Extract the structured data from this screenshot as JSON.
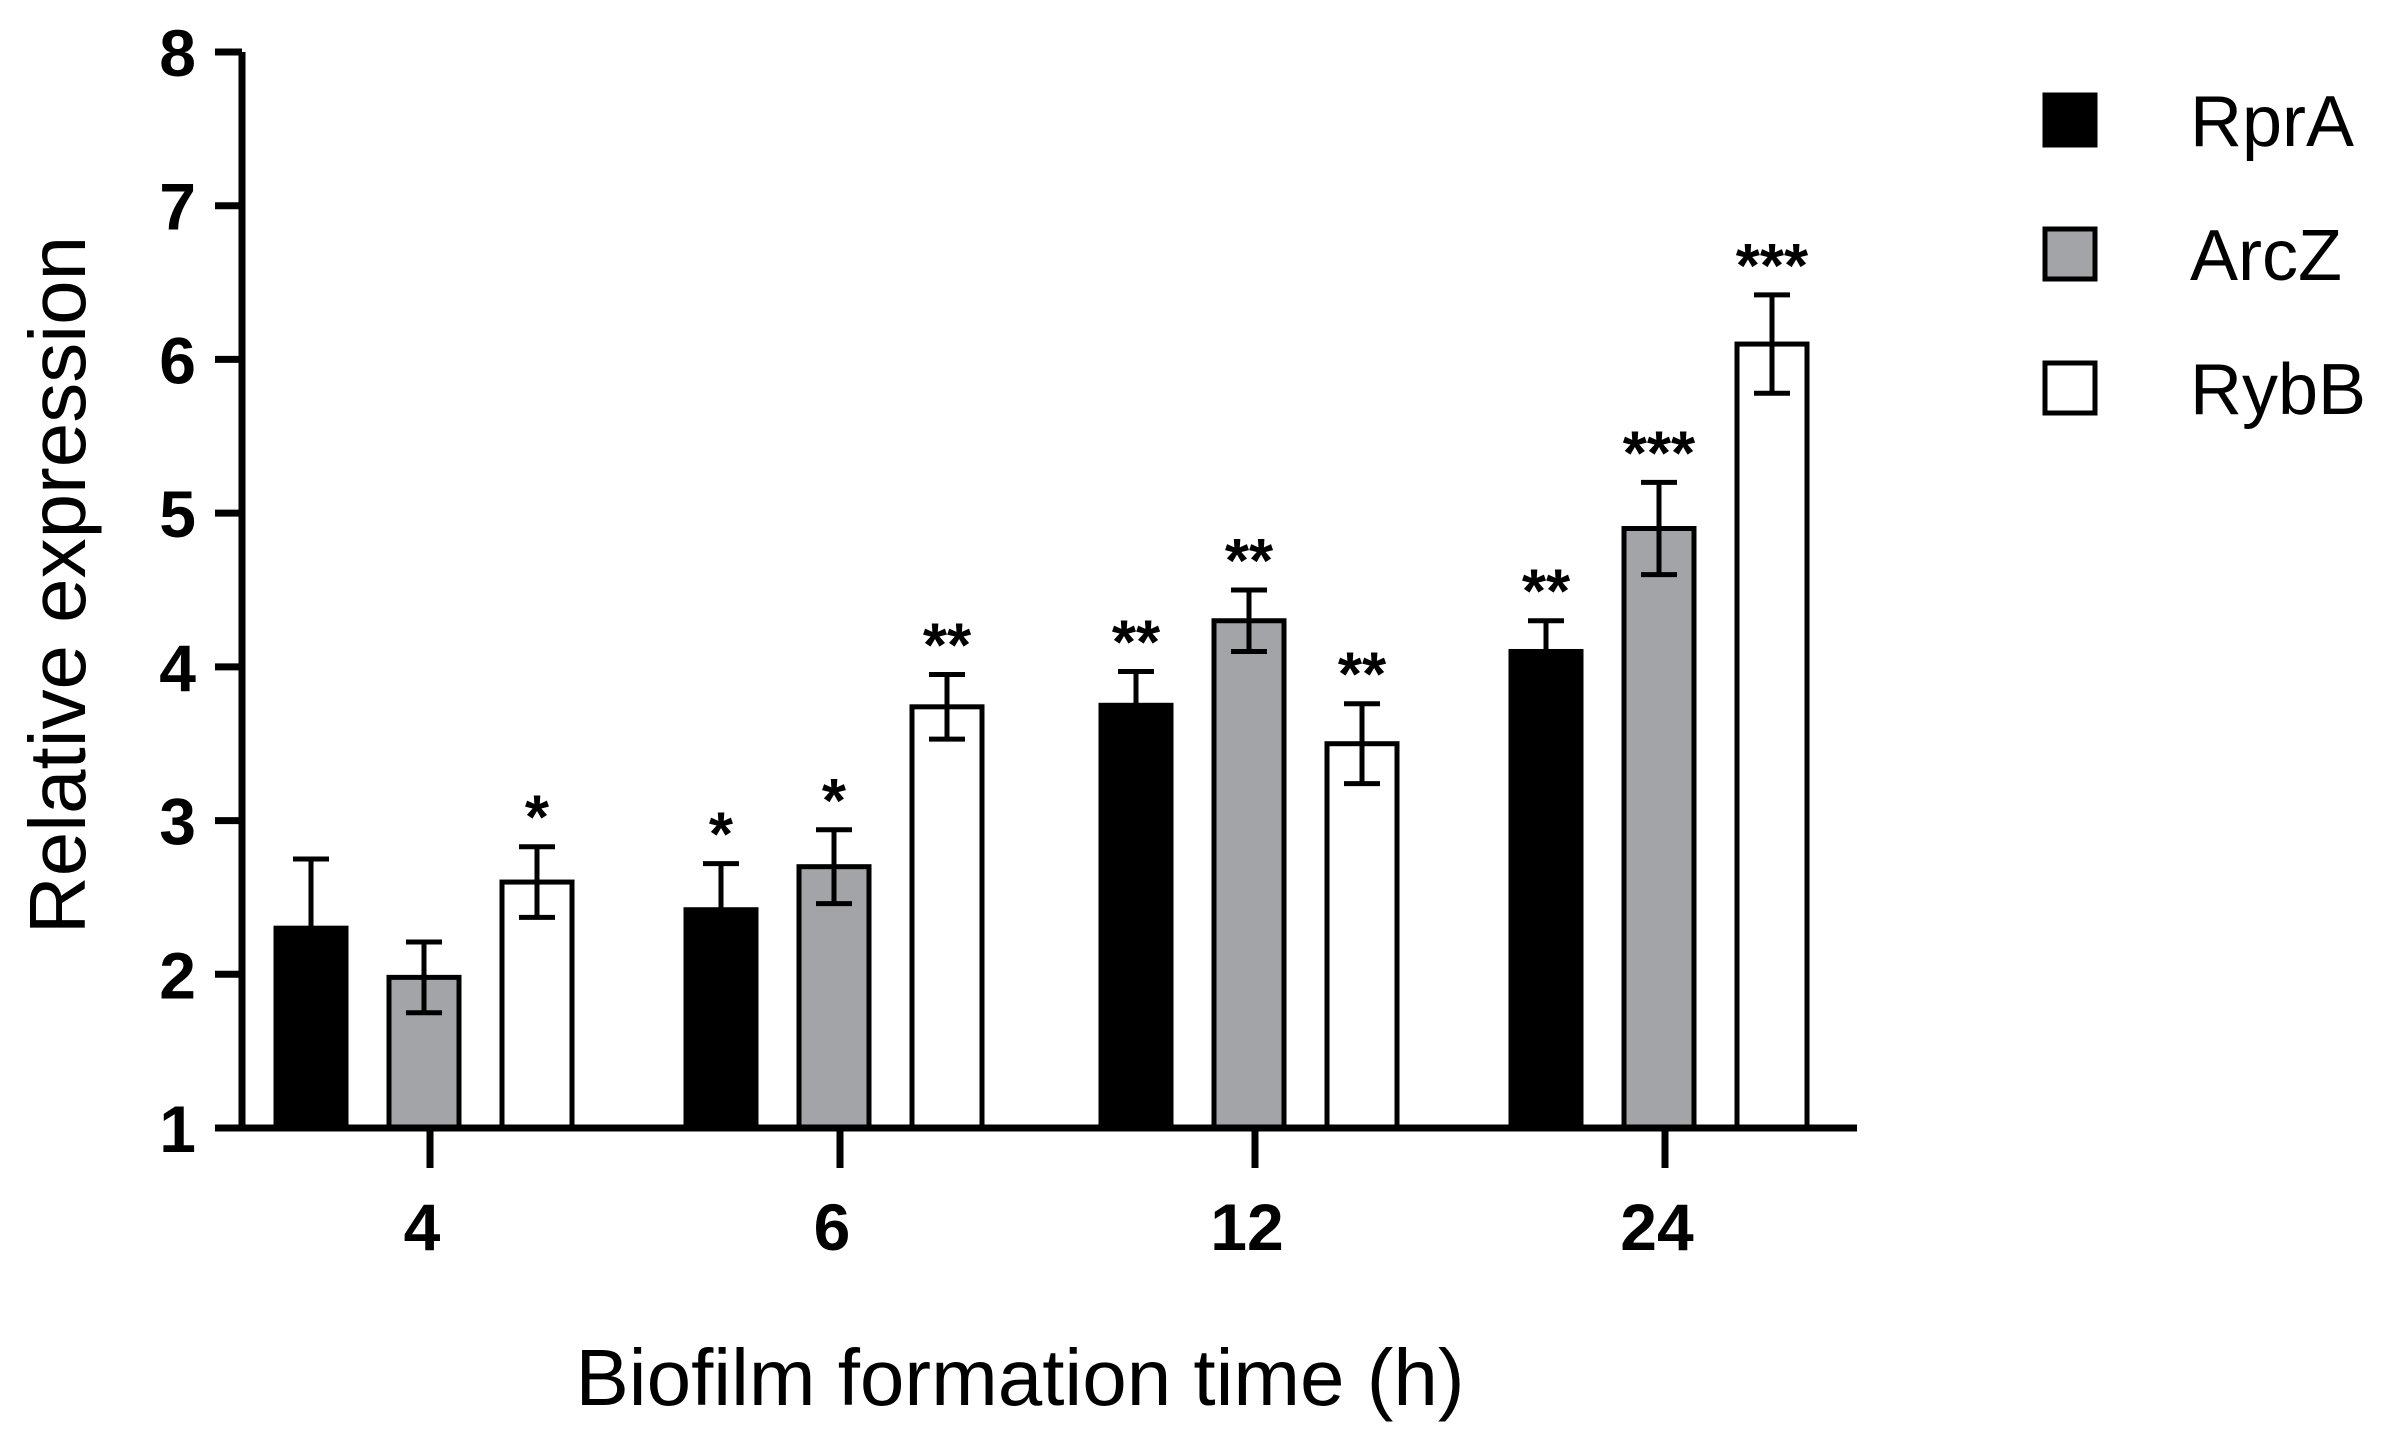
{
  "chart_data": {
    "type": "bar",
    "xlabel": "Biofilm formation time (h)",
    "ylabel": "Relative expression",
    "ylim": [
      1,
      8
    ],
    "yticks": [
      "1",
      "2",
      "3",
      "4",
      "5",
      "6",
      "7",
      "8"
    ],
    "categories": [
      "4",
      "6",
      "12",
      "24"
    ],
    "legend_position": "top-right",
    "series": [
      {
        "name": "RprA",
        "color": "#000000",
        "values": [
          2.3,
          2.42,
          3.75,
          4.1
        ],
        "errors": [
          0.45,
          0.3,
          0.22,
          0.2
        ],
        "error_bottom": [
          false,
          false,
          true,
          true
        ],
        "significance": [
          "",
          "*",
          "**",
          "**"
        ]
      },
      {
        "name": "ArcZ",
        "color": "#a3a4a8",
        "values": [
          1.98,
          2.7,
          4.3,
          4.9
        ],
        "errors": [
          0.23,
          0.24,
          0.2,
          0.3
        ],
        "error_bottom": [
          true,
          true,
          true,
          true
        ],
        "significance": [
          "",
          "*",
          "**",
          "***"
        ]
      },
      {
        "name": "RybB",
        "color": "#ffffff",
        "values": [
          2.6,
          3.74,
          3.5,
          6.1
        ],
        "errors": [
          0.23,
          0.21,
          0.26,
          0.32
        ],
        "error_bottom": [
          true,
          true,
          true,
          true
        ],
        "significance": [
          "*",
          "**",
          "**",
          "***"
        ]
      }
    ]
  }
}
